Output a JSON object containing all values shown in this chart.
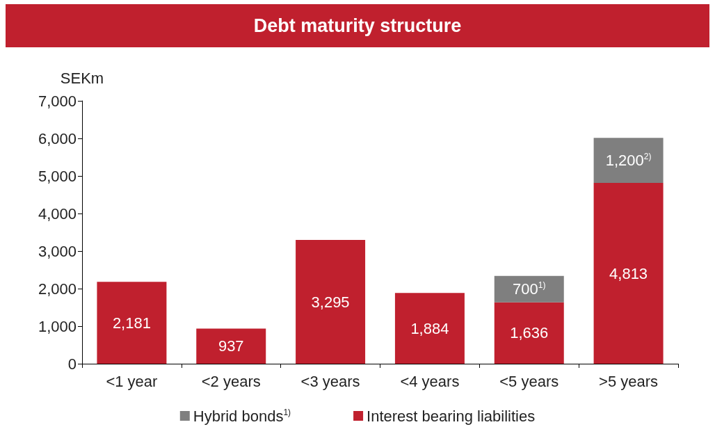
{
  "chart_data": {
    "type": "bar",
    "title": "Debt maturity structure",
    "ylabel": "SEKm",
    "categories": [
      "<1 year",
      "<2 years",
      "<3 years",
      "<4 years",
      "<5 years",
      ">5 years"
    ],
    "series": [
      {
        "name": "Interest bearing liabilities",
        "color": "#c0202e",
        "values": [
          2181,
          937,
          3295,
          1884,
          1636,
          4813
        ],
        "value_labels": [
          "2,181",
          "937",
          "3,295",
          "1,884",
          "1,636",
          "4,813"
        ]
      },
      {
        "name": "Hybrid bonds$^{1)}$",
        "color": "#7f7f7f",
        "values": [
          null,
          null,
          null,
          null,
          700,
          1200
        ],
        "value_labels": [
          null,
          null,
          null,
          null,
          "700$^{1)}$",
          "1,200$^{2)}$"
        ]
      }
    ],
    "stacked": true,
    "ylim": [
      0,
      7000
    ],
    "yticks": [
      {
        "value": 0,
        "label": "0"
      },
      {
        "value": 1000,
        "label": "1,000"
      },
      {
        "value": 2000,
        "label": "2,000"
      },
      {
        "value": 3000,
        "label": "3,000"
      },
      {
        "value": 4000,
        "label": "4,000"
      },
      {
        "value": 5000,
        "label": "5,000"
      },
      {
        "value": 6000,
        "label": "6,000"
      },
      {
        "value": 7000,
        "label": "7,000"
      }
    ],
    "grid": false,
    "legend": "bottom"
  }
}
